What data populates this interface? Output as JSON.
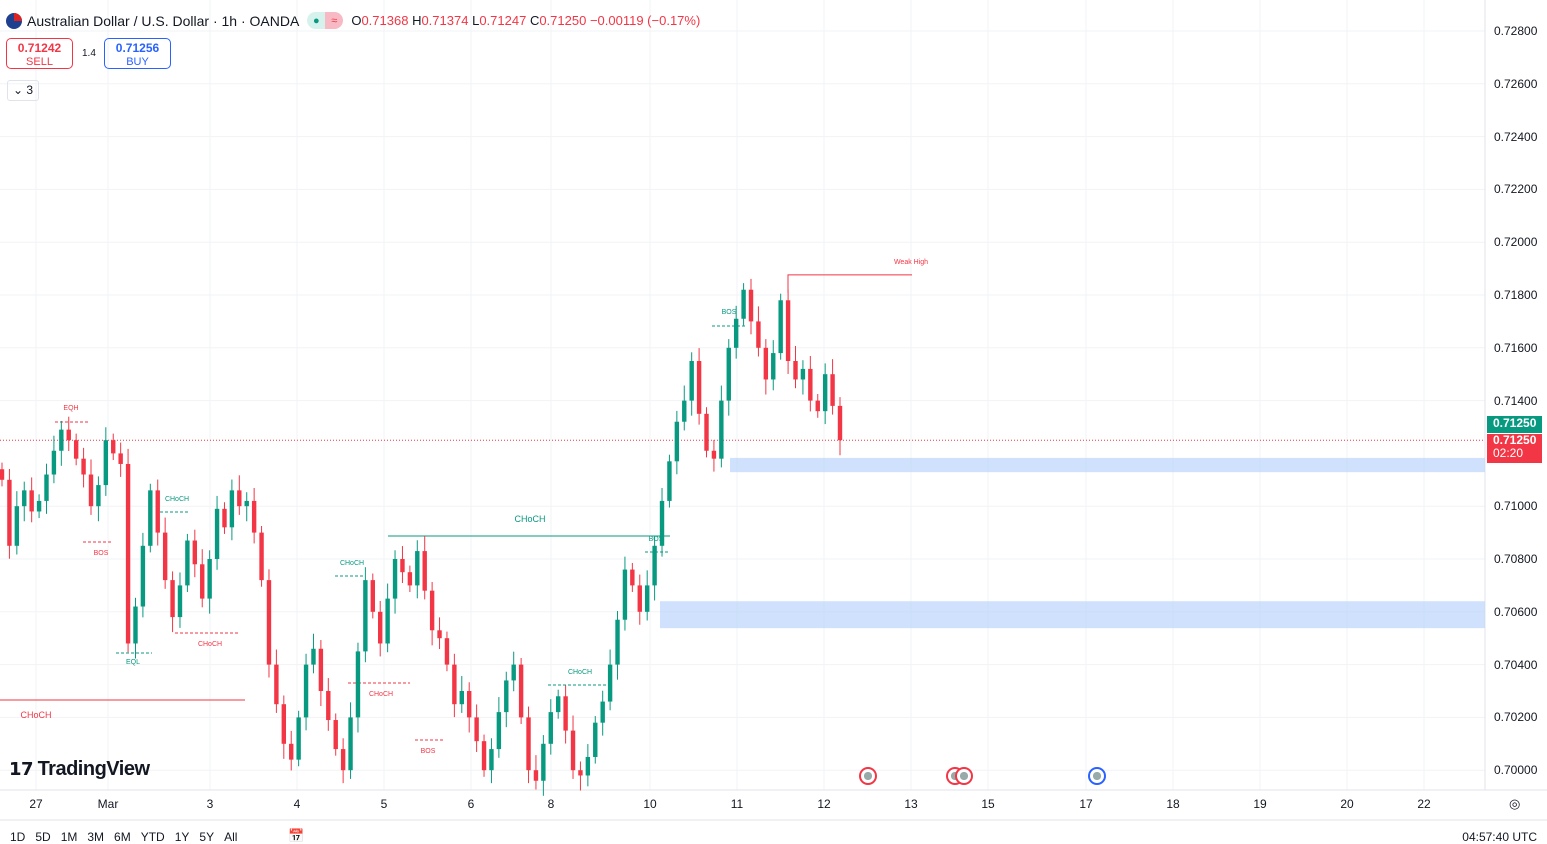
{
  "header": {
    "symbol": "Australian Dollar / U.S. Dollar · 1h · OANDA",
    "open_label": "O",
    "open": "0.71368",
    "high_label": "H",
    "high": "0.71374",
    "low_label": "L",
    "low": "0.71247",
    "close_label": "C",
    "close": "0.71250",
    "change": "−0.00119 (−0.17%)"
  },
  "trade": {
    "sell_price": "0.71242",
    "sell_label": "SELL",
    "spread": "1.4",
    "buy_price": "0.71256",
    "buy_label": "BUY"
  },
  "indicators_collapsed": "3",
  "logo": "TradingView",
  "price_axis": {
    "ticks": [
      "0.72800",
      "0.72600",
      "0.72400",
      "0.72200",
      "0.72000",
      "0.71800",
      "0.71600",
      "0.71400",
      "0.71000",
      "0.70800",
      "0.70600",
      "0.70400",
      "0.70200",
      "0.70000"
    ],
    "last_price": "0.71250",
    "bid_price": "0.71250",
    "countdown": "02:20"
  },
  "time_axis": [
    "27",
    "Mar",
    "3",
    "4",
    "5",
    "6",
    "8",
    "10",
    "11",
    "12",
    "13",
    "15",
    "17",
    "18",
    "19",
    "20",
    "22"
  ],
  "ranges": [
    "1D",
    "5D",
    "1M",
    "3M",
    "6M",
    "YTD",
    "1Y",
    "5Y",
    "All"
  ],
  "clock": "04:57:40 UTC",
  "annotations": {
    "eqh": "EQH",
    "bos1": "BOS",
    "choch1": "CHoCH",
    "eql": "EQL",
    "choch2": "CHoCH",
    "choch_big_red": "CHoCH",
    "choch3": "CHoCH",
    "choch4": "CHoCH",
    "bos2": "BOS",
    "choch_big_teal": "CHoCH",
    "choch5": "CHoCH",
    "bos3": "BOS",
    "bos4": "BOS",
    "weak_high": "Weak High"
  },
  "colors": {
    "up": "#089981",
    "down": "#f23645",
    "zone": "#bbd4fb"
  },
  "chart_data": {
    "type": "candlestick",
    "ylim": [
      0.6995,
      0.7285
    ],
    "zones": [
      [
        0.71129,
        0.71183
      ],
      [
        0.70538,
        0.7064
      ]
    ],
    "levels": {
      "choch_red": 0.70266,
      "choch_teal": 0.70887,
      "weak_high": 0.71876,
      "last": 0.7125
    },
    "closes": [
      0.711,
      0.7085,
      0.71,
      0.7106,
      0.7098,
      0.7102,
      0.7112,
      0.7121,
      0.7129,
      0.7125,
      0.7118,
      0.7112,
      0.71,
      0.7108,
      0.7125,
      0.712,
      0.7116,
      0.7048,
      0.7062,
      0.7085,
      0.7106,
      0.709,
      0.7072,
      0.7058,
      0.707,
      0.7087,
      0.7078,
      0.7065,
      0.708,
      0.7099,
      0.7092,
      0.7106,
      0.71,
      0.7102,
      0.709,
      0.7072,
      0.704,
      0.7025,
      0.701,
      0.7004,
      0.702,
      0.704,
      0.7046,
      0.703,
      0.7019,
      0.7008,
      0.7,
      0.702,
      0.7045,
      0.7072,
      0.706,
      0.7048,
      0.7065,
      0.708,
      0.7075,
      0.707,
      0.7083,
      0.7068,
      0.7053,
      0.705,
      0.704,
      0.7025,
      0.703,
      0.702,
      0.7011,
      0.7,
      0.7008,
      0.7022,
      0.7034,
      0.704,
      0.702,
      0.7,
      0.6996,
      0.701,
      0.7022,
      0.7028,
      0.7015,
      0.7,
      0.6998,
      0.7005,
      0.7018,
      0.7026,
      0.704,
      0.7057,
      0.7076,
      0.707,
      0.706,
      0.707,
      0.7085,
      0.7102,
      0.7117,
      0.7132,
      0.714,
      0.7155,
      0.7135,
      0.7121,
      0.7118,
      0.714,
      0.716,
      0.7171,
      0.7182,
      0.717,
      0.716,
      0.7148,
      0.7158,
      0.7178,
      0.7155,
      0.7148,
      0.7152,
      0.714,
      0.7136,
      0.715,
      0.7138,
      0.7125
    ]
  }
}
